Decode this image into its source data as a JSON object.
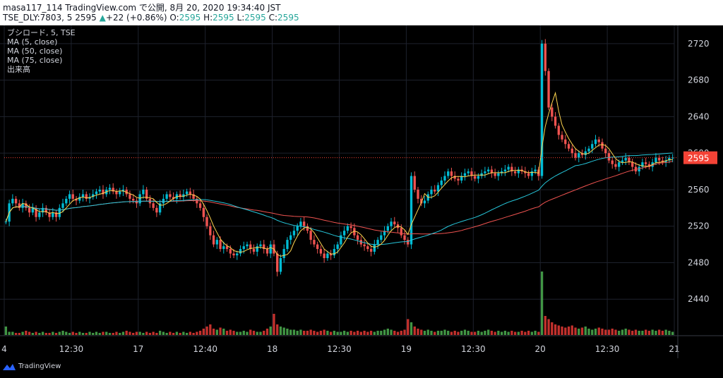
{
  "header": {
    "line1": "masa117_114 TradingView.com で公開, 8月 20, 2020 19:34:40 JST",
    "symbol": "TSE_DLY:7803, 5",
    "last": "2595",
    "change_arrow": "▲",
    "change": "+22 (+0.86%)",
    "o_label": "O:",
    "o": "2595",
    "h_label": "H:",
    "h": "2595",
    "l_label": "L:",
    "l": "2595",
    "c_label": "C:",
    "c": "2595"
  },
  "legend": {
    "title": "ブシロード, 5, TSE",
    "ma5": "MA (5, close)",
    "ma50": "MA (50, close)",
    "ma75": "MA (75, close)",
    "volume": "出来高"
  },
  "footer": {
    "brand": "TradingView"
  },
  "colors": {
    "up": "#26a69a",
    "down": "#ef5350",
    "up_fill": "#00bcd4",
    "ma5": "#ffd54f",
    "ma50": "#26c6da",
    "ma75": "#ef5350",
    "last_price": "#f44336"
  },
  "chart_data": {
    "type": "candlestick",
    "ylim": [
      2400,
      2740
    ],
    "y_ticks": [
      2440,
      2480,
      2520,
      2560,
      2600,
      2640,
      2680,
      2720
    ],
    "x_ticks": [
      {
        "label": "4",
        "index": 0
      },
      {
        "label": "12:30",
        "index": 20
      },
      {
        "label": "17",
        "index": 40
      },
      {
        "label": "12:40",
        "index": 60
      },
      {
        "label": "18",
        "index": 80
      },
      {
        "label": "12:30",
        "index": 100
      },
      {
        "label": "19",
        "index": 120
      },
      {
        "label": "12:30",
        "index": 140
      },
      {
        "label": "20",
        "index": 160
      },
      {
        "label": "12:30",
        "index": 180
      },
      {
        "label": "21",
        "index": 200
      }
    ],
    "last_price": 2595,
    "closes": [
      2525,
      2545,
      2550,
      2545,
      2540,
      2545,
      2540,
      2535,
      2540,
      2530,
      2535,
      2540,
      2535,
      2530,
      2535,
      2530,
      2540,
      2545,
      2550,
      2555,
      2550,
      2548,
      2552,
      2555,
      2550,
      2552,
      2555,
      2558,
      2560,
      2555,
      2560,
      2562,
      2558,
      2555,
      2558,
      2560,
      2555,
      2550,
      2548,
      2545,
      2555,
      2560,
      2550,
      2545,
      2540,
      2535,
      2545,
      2550,
      2555,
      2552,
      2550,
      2555,
      2552,
      2555,
      2558,
      2555,
      2550,
      2545,
      2540,
      2530,
      2520,
      2510,
      2500,
      2505,
      2495,
      2498,
      2495,
      2490,
      2488,
      2490,
      2495,
      2498,
      2500,
      2495,
      2492,
      2498,
      2500,
      2495,
      2490,
      2500,
      2490,
      2470,
      2485,
      2495,
      2505,
      2510,
      2515,
      2520,
      2525,
      2520,
      2515,
      2505,
      2500,
      2495,
      2490,
      2485,
      2490,
      2488,
      2495,
      2500,
      2510,
      2515,
      2520,
      2518,
      2510,
      2505,
      2500,
      2498,
      2495,
      2492,
      2500,
      2505,
      2510,
      2515,
      2520,
      2525,
      2522,
      2518,
      2510,
      2505,
      2500,
      2575,
      2560,
      2550,
      2545,
      2548,
      2555,
      2560,
      2558,
      2565,
      2570,
      2575,
      2580,
      2575,
      2572,
      2570,
      2575,
      2578,
      2580,
      2575,
      2572,
      2575,
      2578,
      2580,
      2582,
      2578,
      2575,
      2578,
      2580,
      2582,
      2585,
      2580,
      2578,
      2582,
      2580,
      2578,
      2575,
      2580,
      2582,
      2575,
      2720,
      2690,
      2650,
      2640,
      2630,
      2620,
      2615,
      2610,
      2605,
      2600,
      2595,
      2600,
      2598,
      2602,
      2605,
      2610,
      2615,
      2612,
      2605,
      2600,
      2592,
      2588,
      2585,
      2590,
      2592,
      2595,
      2590,
      2585,
      2580,
      2585,
      2590,
      2588,
      2585,
      2590,
      2595,
      2592,
      2590,
      2592,
      2595,
      2595
    ],
    "ma5": [],
    "volumes_note": "relative heights",
    "volumes": [
      8,
      3,
      3,
      2,
      2,
      3,
      4,
      3,
      2,
      3,
      2,
      3,
      2,
      2,
      3,
      2,
      3,
      4,
      3,
      2,
      3,
      2,
      3,
      2,
      2,
      3,
      2,
      3,
      2,
      3,
      3,
      2,
      2,
      3,
      2,
      3,
      4,
      3,
      2,
      3,
      3,
      2,
      3,
      2,
      3,
      2,
      4,
      3,
      2,
      3,
      2,
      3,
      2,
      3,
      2,
      3,
      2,
      3,
      4,
      6,
      8,
      10,
      6,
      5,
      7,
      6,
      4,
      5,
      4,
      3,
      3,
      4,
      3,
      5,
      4,
      3,
      3,
      4,
      6,
      8,
      20,
      10,
      8,
      7,
      6,
      5,
      5,
      4,
      5,
      4,
      4,
      5,
      4,
      3,
      4,
      5,
      4,
      3,
      4,
      3,
      3,
      4,
      3,
      4,
      3,
      4,
      3,
      4,
      3,
      4,
      3,
      4,
      4,
      5,
      6,
      5,
      4,
      3,
      4,
      5,
      15,
      12,
      8,
      6,
      5,
      4,
      5,
      4,
      3,
      4,
      4,
      5,
      4,
      3,
      4,
      3,
      4,
      5,
      4,
      3,
      3,
      4,
      3,
      4,
      5,
      4,
      3,
      4,
      3,
      4,
      3,
      4,
      3,
      3,
      4,
      3,
      4,
      3,
      4,
      3,
      60,
      18,
      15,
      12,
      10,
      9,
      8,
      7,
      8,
      9,
      7,
      6,
      7,
      8,
      6,
      5,
      6,
      7,
      6,
      5,
      5,
      6,
      5,
      4,
      5,
      6,
      5,
      4,
      5,
      4,
      4,
      5,
      4,
      5,
      4,
      5,
      4,
      5,
      4,
      3
    ]
  }
}
